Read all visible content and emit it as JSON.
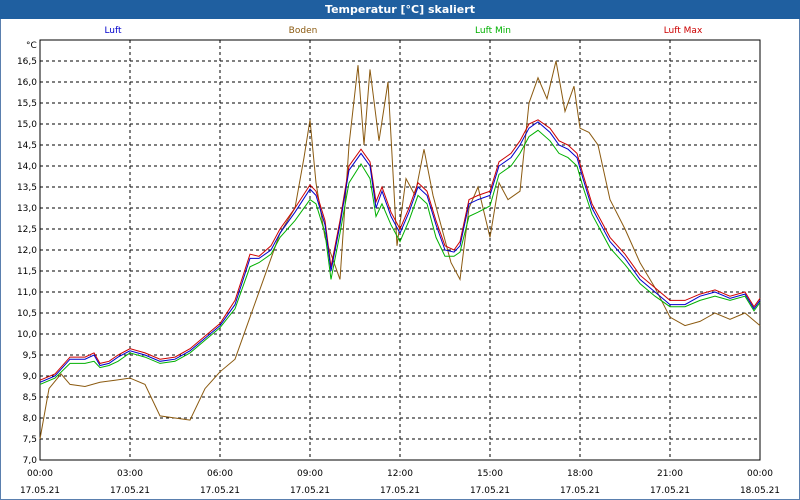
{
  "window": {
    "title": "Temperatur [°C] skaliert"
  },
  "chart_data": {
    "type": "line",
    "title": "Temperatur [°C] skaliert",
    "ylabel": "°C",
    "ylim": [
      7.0,
      17.0
    ],
    "xlim": [
      0,
      24
    ],
    "grid": true,
    "legend_position": "top",
    "y_ticks": [
      "7,0",
      "7,5",
      "8,0",
      "8,5",
      "9,0",
      "9,5",
      "10,0",
      "10,5",
      "11,0",
      "11,5",
      "12,0",
      "12,5",
      "13,0",
      "13,5",
      "14,0",
      "14,5",
      "15,0",
      "15,5",
      "16,0",
      "16,5"
    ],
    "x_ticks": [
      {
        "x": 0,
        "time": "00:00",
        "date": "17.05.21"
      },
      {
        "x": 3,
        "time": "03:00",
        "date": "17.05.21"
      },
      {
        "x": 6,
        "time": "06:00",
        "date": "17.05.21"
      },
      {
        "x": 9,
        "time": "09:00",
        "date": "17.05.21"
      },
      {
        "x": 12,
        "time": "12:00",
        "date": "17.05.21"
      },
      {
        "x": 15,
        "time": "15:00",
        "date": "17.05.21"
      },
      {
        "x": 18,
        "time": "18:00",
        "date": "17.05.21"
      },
      {
        "x": 21,
        "time": "21:00",
        "date": "17.05.21"
      },
      {
        "x": 24,
        "time": "00:00",
        "date": "18.05.21"
      }
    ],
    "series": [
      {
        "name": "Luft",
        "color": "#0000cc",
        "x": [
          0,
          0.5,
          1,
          1.5,
          1.8,
          2,
          2.3,
          2.6,
          3,
          3.5,
          4,
          4.5,
          5,
          5.5,
          6,
          6.5,
          7,
          7.3,
          7.7,
          8,
          8.5,
          9,
          9.2,
          9.5,
          9.7,
          10,
          10.3,
          10.7,
          11,
          11.2,
          11.4,
          11.7,
          12,
          12.3,
          12.6,
          12.9,
          13.2,
          13.5,
          13.8,
          14,
          14.3,
          14.6,
          15,
          15.3,
          15.7,
          16,
          16.3,
          16.6,
          17,
          17.3,
          17.6,
          17.9,
          18.1,
          18.4,
          18.7,
          19,
          19.5,
          20,
          20.5,
          21,
          21.5,
          22,
          22.5,
          23,
          23.5,
          23.8,
          24
        ],
        "values": [
          8.85,
          9.0,
          9.4,
          9.4,
          9.5,
          9.25,
          9.3,
          9.45,
          9.6,
          9.5,
          9.35,
          9.4,
          9.6,
          9.9,
          10.2,
          10.7,
          11.8,
          11.8,
          12.0,
          12.4,
          12.9,
          13.45,
          13.3,
          12.6,
          11.5,
          12.6,
          13.9,
          14.3,
          14.0,
          13.0,
          13.4,
          12.8,
          12.4,
          12.9,
          13.5,
          13.3,
          12.6,
          12.0,
          11.95,
          12.1,
          13.1,
          13.2,
          13.3,
          14.0,
          14.2,
          14.5,
          14.9,
          15.05,
          14.8,
          14.5,
          14.4,
          14.2,
          13.7,
          13.0,
          12.6,
          12.2,
          11.8,
          11.3,
          11.0,
          10.7,
          10.7,
          10.9,
          11.0,
          10.85,
          10.95,
          10.6,
          10.8
        ]
      },
      {
        "name": "Boden",
        "color": "#8b5a10",
        "x": [
          0,
          0.3,
          0.7,
          1,
          1.5,
          2,
          2.5,
          3,
          3.5,
          4,
          4.5,
          5,
          5.5,
          6,
          6.5,
          7,
          7.5,
          8,
          8.5,
          8.8,
          9,
          9.2,
          9.5,
          10,
          10.3,
          10.6,
          10.8,
          11,
          11.3,
          11.6,
          11.9,
          12.2,
          12.5,
          12.8,
          13.1,
          13.4,
          13.7,
          14,
          14.3,
          14.6,
          15,
          15.3,
          15.6,
          16,
          16.3,
          16.6,
          16.9,
          17.2,
          17.5,
          17.8,
          18,
          18.3,
          18.6,
          19,
          19.5,
          20,
          20.5,
          21,
          21.5,
          22,
          22.5,
          23,
          23.5,
          24
        ],
        "values": [
          7.5,
          8.7,
          9.05,
          8.8,
          8.75,
          8.85,
          8.9,
          8.95,
          8.8,
          8.05,
          8.0,
          7.95,
          8.7,
          9.1,
          9.4,
          10.4,
          11.4,
          12.4,
          13.0,
          14.2,
          15.1,
          13.6,
          12.3,
          11.3,
          14.5,
          16.4,
          14.5,
          16.3,
          14.6,
          16.0,
          12.1,
          13.7,
          13.3,
          14.4,
          13.3,
          12.5,
          11.7,
          11.3,
          13.0,
          13.5,
          12.3,
          13.6,
          13.2,
          13.4,
          15.5,
          16.1,
          15.6,
          16.5,
          15.3,
          15.9,
          14.9,
          14.8,
          14.5,
          13.2,
          12.5,
          11.7,
          11.1,
          10.4,
          10.2,
          10.3,
          10.5,
          10.35,
          10.5,
          10.2
        ]
      },
      {
        "name": "Luft Min",
        "color": "#00b000",
        "x": [
          0,
          0.5,
          1,
          1.5,
          1.8,
          2,
          2.3,
          2.6,
          3,
          3.5,
          4,
          4.5,
          5,
          5.5,
          6,
          6.5,
          7,
          7.3,
          7.7,
          8,
          8.5,
          9,
          9.2,
          9.5,
          9.7,
          10,
          10.3,
          10.7,
          11,
          11.2,
          11.4,
          11.7,
          12,
          12.3,
          12.6,
          12.9,
          13.2,
          13.5,
          13.8,
          14,
          14.3,
          14.6,
          15,
          15.3,
          15.7,
          16,
          16.3,
          16.6,
          17,
          17.3,
          17.6,
          17.9,
          18.1,
          18.4,
          18.7,
          19,
          19.5,
          20,
          20.5,
          21,
          21.5,
          22,
          22.5,
          23,
          23.5,
          23.8,
          24
        ],
        "values": [
          8.8,
          8.95,
          9.3,
          9.3,
          9.35,
          9.2,
          9.25,
          9.35,
          9.55,
          9.45,
          9.3,
          9.35,
          9.55,
          9.85,
          10.15,
          10.6,
          11.6,
          11.7,
          11.9,
          12.3,
          12.7,
          13.2,
          13.1,
          12.4,
          11.3,
          12.4,
          13.6,
          14.05,
          13.7,
          12.8,
          13.1,
          12.6,
          12.2,
          12.7,
          13.3,
          13.1,
          12.3,
          11.85,
          11.85,
          11.95,
          12.8,
          12.9,
          13.05,
          13.8,
          14.0,
          14.3,
          14.7,
          14.85,
          14.6,
          14.3,
          14.2,
          14.0,
          13.5,
          12.85,
          12.45,
          12.05,
          11.65,
          11.2,
          10.9,
          10.65,
          10.65,
          10.8,
          10.9,
          10.8,
          10.9,
          10.55,
          10.75
        ]
      },
      {
        "name": "Luft Max",
        "color": "#cc0000",
        "x": [
          0,
          0.5,
          1,
          1.5,
          1.8,
          2,
          2.3,
          2.6,
          3,
          3.5,
          4,
          4.5,
          5,
          5.5,
          6,
          6.5,
          7,
          7.3,
          7.7,
          8,
          8.5,
          9,
          9.2,
          9.5,
          9.7,
          10,
          10.3,
          10.7,
          11,
          11.2,
          11.4,
          11.7,
          12,
          12.3,
          12.6,
          12.9,
          13.2,
          13.5,
          13.8,
          14,
          14.3,
          14.6,
          15,
          15.3,
          15.7,
          16,
          16.3,
          16.6,
          17,
          17.3,
          17.6,
          17.9,
          18.1,
          18.4,
          18.7,
          19,
          19.5,
          20,
          20.5,
          21,
          21.5,
          22,
          22.5,
          23,
          23.5,
          23.8,
          24
        ],
        "values": [
          8.9,
          9.05,
          9.45,
          9.45,
          9.55,
          9.3,
          9.35,
          9.5,
          9.65,
          9.55,
          9.4,
          9.45,
          9.65,
          9.95,
          10.25,
          10.8,
          11.9,
          11.85,
          12.1,
          12.5,
          13.0,
          13.55,
          13.4,
          12.7,
          11.6,
          12.7,
          14.0,
          14.4,
          14.1,
          13.15,
          13.5,
          12.9,
          12.5,
          13.0,
          13.6,
          13.4,
          12.7,
          12.1,
          12.0,
          12.2,
          13.2,
          13.3,
          13.4,
          14.1,
          14.3,
          14.6,
          15.0,
          15.1,
          14.9,
          14.6,
          14.5,
          14.3,
          13.8,
          13.1,
          12.7,
          12.3,
          11.9,
          11.4,
          11.1,
          10.8,
          10.8,
          10.95,
          11.05,
          10.9,
          11.0,
          10.65,
          10.85
        ]
      }
    ]
  }
}
